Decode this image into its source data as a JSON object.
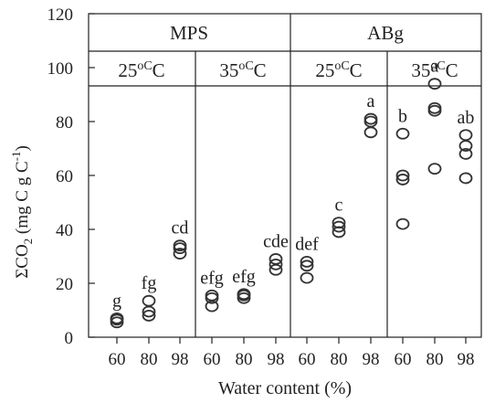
{
  "chart_data": {
    "type": "scatter",
    "xlabel": "Water content (%)",
    "ylabel_main": "ΣCO",
    "ylabel_sub": "2",
    "ylabel_units": " (mg C g C",
    "ylabel_sup": "-1",
    "ylabel_close": ")",
    "ylim": [
      0,
      120
    ],
    "yticks": [
      "0",
      "20",
      "40",
      "60",
      "80",
      "100",
      "120"
    ],
    "grid": false,
    "soils": [
      "MPS",
      "ABg"
    ],
    "temperatures": [
      "25",
      "35",
      "25",
      "35"
    ],
    "temp_unit": "oC",
    "x_categories": [
      "60",
      "80",
      "98",
      "60",
      "80",
      "98",
      "60",
      "80",
      "98",
      "60",
      "80",
      "98"
    ],
    "groups": [
      {
        "soil": "MPS",
        "temperature": "25oC",
        "water_content": "60",
        "letter": "g",
        "values": [
          5.5,
          6.5,
          7
        ]
      },
      {
        "soil": "MPS",
        "temperature": "25oC",
        "water_content": "80",
        "letter": "fg",
        "values": [
          8,
          9.5,
          13.5
        ]
      },
      {
        "soil": "MPS",
        "temperature": "25oC",
        "water_content": "98",
        "letter": "cd",
        "values": [
          31,
          33,
          34
        ]
      },
      {
        "soil": "MPS",
        "temperature": "35oC",
        "water_content": "60",
        "letter": "efg",
        "values": [
          11.5,
          14.5,
          15.5
        ]
      },
      {
        "soil": "MPS",
        "temperature": "35oC",
        "water_content": "80",
        "letter": "efg",
        "values": [
          14.5,
          15.5,
          16
        ]
      },
      {
        "soil": "MPS",
        "temperature": "35oC",
        "water_content": "98",
        "letter": "cde",
        "values": [
          25,
          27,
          29
        ]
      },
      {
        "soil": "ABg",
        "temperature": "25oC",
        "water_content": "60",
        "letter": "def",
        "values": [
          22,
          26.5,
          28
        ]
      },
      {
        "soil": "ABg",
        "temperature": "25oC",
        "water_content": "80",
        "letter": "c",
        "values": [
          39,
          41,
          42.5
        ]
      },
      {
        "soil": "ABg",
        "temperature": "25oC",
        "water_content": "98",
        "letter": "a",
        "values": [
          76,
          80,
          81
        ]
      },
      {
        "soil": "ABg",
        "temperature": "35oC",
        "water_content": "60",
        "letter": "b",
        "values": [
          42,
          58.5,
          60,
          75.5
        ]
      },
      {
        "soil": "ABg",
        "temperature": "35oC",
        "water_content": "80",
        "letter": "a",
        "values": [
          62.5,
          84,
          85,
          94
        ]
      },
      {
        "soil": "ABg",
        "temperature": "35oC",
        "water_content": "98",
        "letter": "ab",
        "values": [
          59,
          68,
          71,
          75
        ]
      }
    ]
  }
}
